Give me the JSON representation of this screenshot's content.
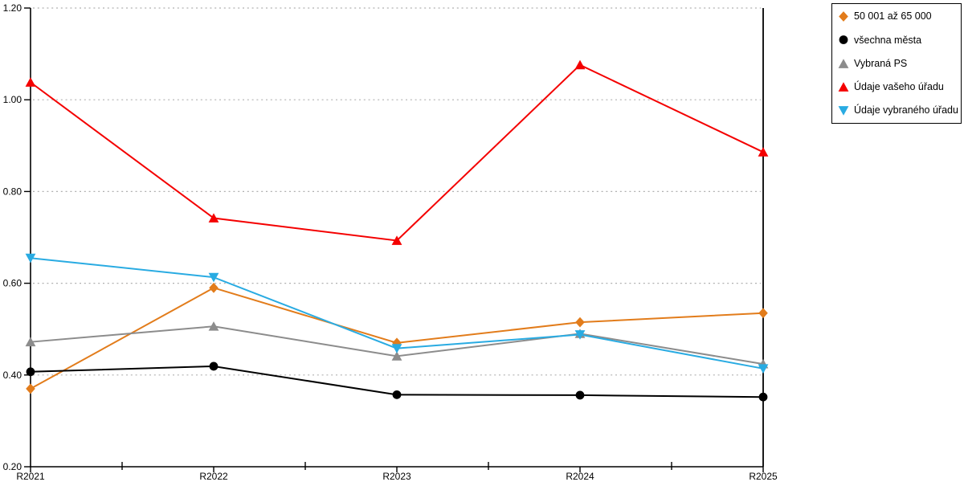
{
  "chart_data": {
    "type": "line",
    "title": "",
    "xlabel": "",
    "ylabel": "",
    "x_categories": [
      "R2021",
      "R2022",
      "R2023",
      "R2024",
      "R2025"
    ],
    "y_ticks": [
      "0.20",
      "0.40",
      "0.60",
      "0.80",
      "1.00",
      "1.20"
    ],
    "ylim": [
      0.2,
      1.2
    ],
    "grid": "horizontal dotted lines at each 0.20 step",
    "legend_position": "top-right outside plot",
    "colors": {
      "axis": "#000000",
      "grid": "#b0b0b0",
      "background": "#ffffff",
      "legend_border": "#000000"
    },
    "series": [
      {
        "name": "50 001 až 65 000",
        "marker": "diamond",
        "color": "#e27c1b",
        "values": [
          0.37,
          0.59,
          0.47,
          0.515,
          0.535
        ]
      },
      {
        "name": "všechna města",
        "marker": "circle",
        "color": "#000000",
        "values": [
          0.407,
          0.419,
          0.357,
          0.356,
          0.352
        ]
      },
      {
        "name": "Vybraná PS",
        "marker": "triangle-up",
        "color": "#8c8c8c",
        "values": [
          0.472,
          0.506,
          0.441,
          0.49,
          0.424
        ]
      },
      {
        "name": "Údaje vašeho úřadu",
        "marker": "triangle-up",
        "color": "#f40000",
        "values": [
          1.038,
          0.742,
          0.693,
          1.076,
          0.886
        ]
      },
      {
        "name": "Údaje vybraného úřadu",
        "marker": "triangle-down",
        "color": "#29abe2",
        "values": [
          0.655,
          0.613,
          0.458,
          0.488,
          0.414
        ]
      }
    ]
  }
}
